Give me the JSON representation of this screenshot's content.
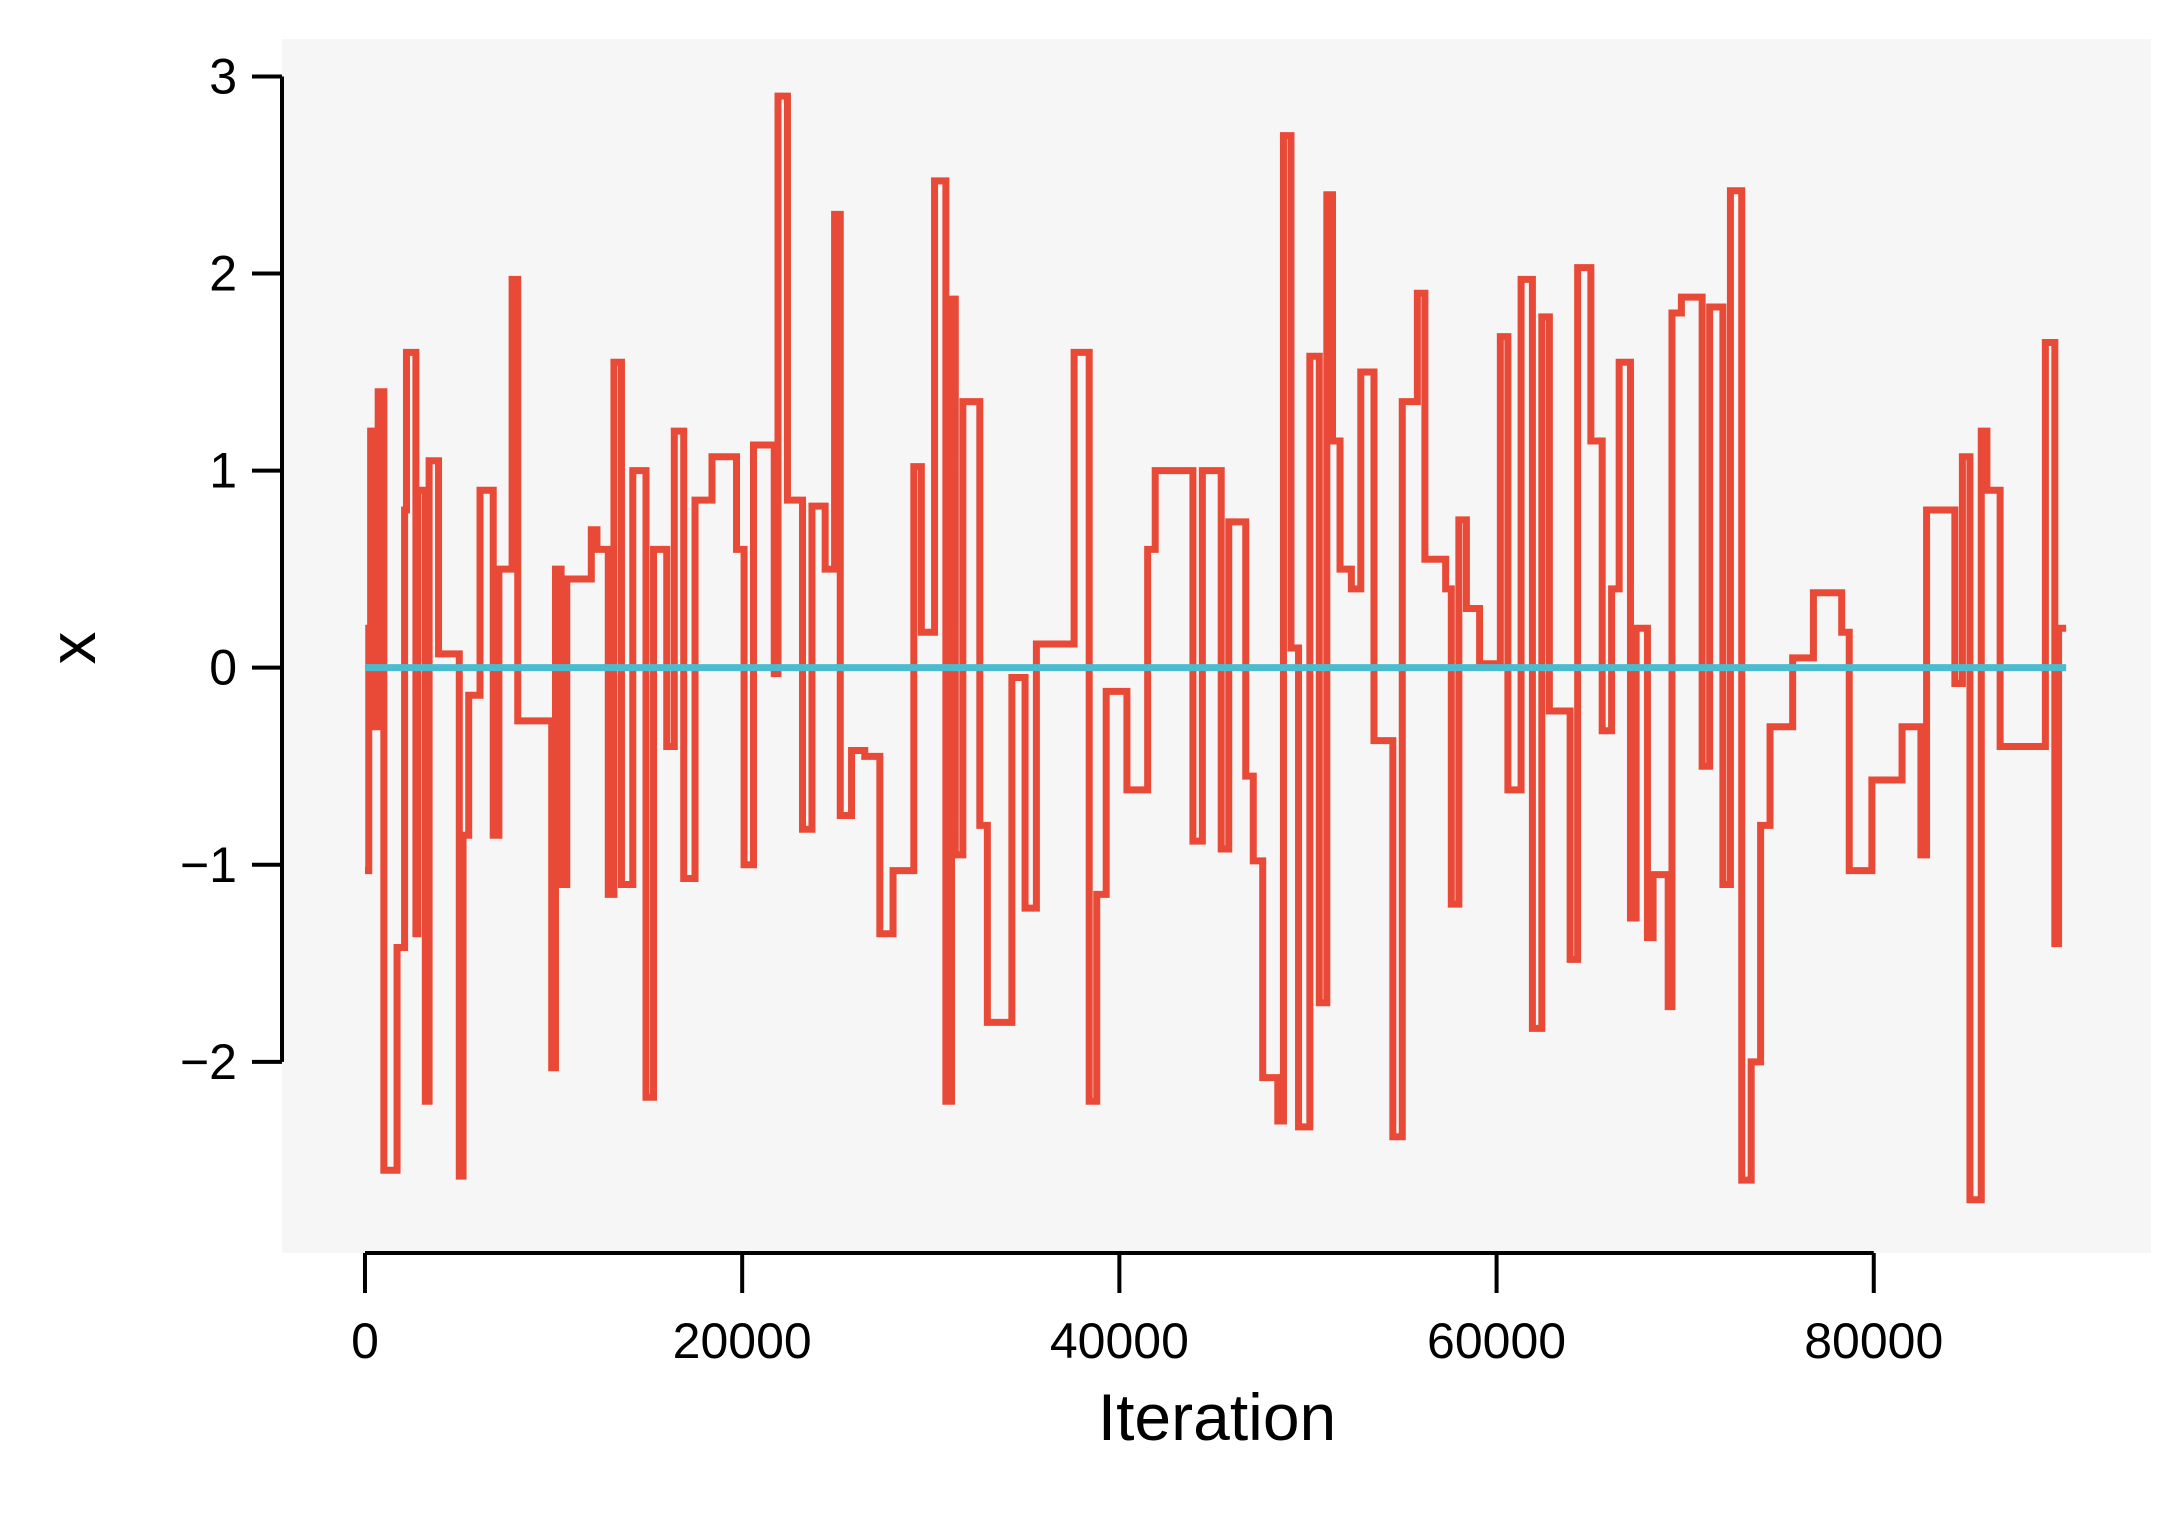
{
  "chart_data": {
    "type": "line",
    "xlabel": "Iteration",
    "ylabel": "x",
    "xlim": [
      -4400,
      94700
    ],
    "ylim": [
      -2.97,
      3.19
    ],
    "xticks": [
      0,
      20000,
      40000,
      60000,
      80000
    ],
    "yticks": [
      {
        "value": -2,
        "label": "−2"
      },
      {
        "value": -1,
        "label": "−1"
      },
      0,
      1,
      2,
      3
    ],
    "background": "#f6f6f6",
    "series": [
      {
        "color": "#e84a37",
        "drawstyle": "steps-post",
        "x": [
          0,
          200,
          300,
          500,
          700,
          1000,
          1700,
          2100,
          2200,
          2700,
          2800,
          3200,
          3400,
          3900,
          5000,
          5200,
          5500,
          6100,
          6800,
          7100,
          7800,
          8100,
          9900,
          10100,
          10400,
          10700,
          12000,
          12300,
          12900,
          13200,
          13600,
          14200,
          14900,
          15300,
          16000,
          16400,
          16900,
          17500,
          18400,
          19700,
          20100,
          20600,
          21700,
          21900,
          22400,
          23200,
          23700,
          24400,
          24900,
          25200,
          25800,
          26500,
          27300,
          28000,
          29100,
          29500,
          30200,
          30800,
          31100,
          31300,
          31700,
          32600,
          33000,
          34300,
          35000,
          35600,
          37600,
          38400,
          38800,
          39300,
          40400,
          41500,
          41900,
          43900,
          44400,
          45400,
          45800,
          46700,
          47100,
          47600,
          48400,
          48700,
          49100,
          49500,
          50100,
          50600,
          51000,
          51300,
          51700,
          52300,
          52800,
          53500,
          54500,
          55000,
          55800,
          56200,
          57300,
          57600,
          58000,
          58400,
          59100,
          60200,
          60600,
          61300,
          61900,
          62400,
          62800,
          63900,
          64300,
          65000,
          65600,
          66100,
          66500,
          67100,
          67400,
          68000,
          68300,
          69100,
          69300,
          69800,
          70900,
          71300,
          72000,
          72400,
          73000,
          73500,
          74000,
          74500,
          75700,
          76800,
          78300,
          78700,
          79900,
          81500,
          82500,
          82800,
          84300,
          84700,
          85100,
          85700,
          86000,
          86700,
          89100,
          89600,
          89800,
          90200
        ],
        "values": [
          -1.03,
          0.2,
          1.2,
          -0.3,
          1.4,
          -2.55,
          -1.42,
          0.8,
          1.6,
          -1.35,
          0.9,
          -2.2,
          1.05,
          0.07,
          -2.58,
          -0.85,
          -0.14,
          0.9,
          -0.85,
          0.5,
          1.97,
          -0.27,
          -2.03,
          0.5,
          -1.1,
          0.45,
          0.7,
          0.6,
          -1.15,
          1.55,
          -1.1,
          1.0,
          -2.18,
          0.6,
          -0.4,
          1.2,
          -1.07,
          0.85,
          1.07,
          0.6,
          -1.0,
          1.13,
          -0.03,
          2.9,
          0.85,
          -0.82,
          0.82,
          0.5,
          2.3,
          -0.75,
          -0.42,
          -0.45,
          -1.35,
          -1.03,
          1.02,
          0.18,
          2.47,
          -2.2,
          1.87,
          -0.95,
          1.35,
          -0.8,
          -1.8,
          -0.05,
          -1.22,
          0.12,
          1.6,
          -2.2,
          -1.15,
          -0.12,
          -0.62,
          0.6,
          1.0,
          -0.88,
          1.0,
          -0.92,
          0.74,
          -0.55,
          -0.98,
          -2.08,
          -2.3,
          2.7,
          0.1,
          -2.33,
          1.58,
          -1.7,
          2.4,
          1.15,
          0.5,
          0.4,
          1.5,
          -0.37,
          -2.38,
          1.35,
          1.9,
          0.55,
          0.4,
          -1.2,
          0.75,
          0.3,
          0.02,
          1.68,
          -0.62,
          1.97,
          -1.83,
          1.78,
          -0.22,
          -1.48,
          2.03,
          1.15,
          -0.32,
          0.4,
          1.55,
          -1.27,
          0.2,
          -1.37,
          -1.05,
          -1.72,
          1.8,
          1.88,
          -0.5,
          1.83,
          -1.1,
          2.42,
          -2.6,
          -2.0,
          -0.8,
          -0.3,
          0.05,
          0.38,
          0.18,
          -1.03,
          -0.57,
          -0.3,
          -0.95,
          0.8,
          -0.08,
          1.07,
          -2.7,
          1.2,
          0.9,
          -0.4,
          1.65,
          -1.4,
          0.2,
          0.2
        ]
      },
      {
        "color": "#4bbccf",
        "x": [
          0,
          90200
        ],
        "values": [
          0,
          0
        ]
      }
    ]
  }
}
